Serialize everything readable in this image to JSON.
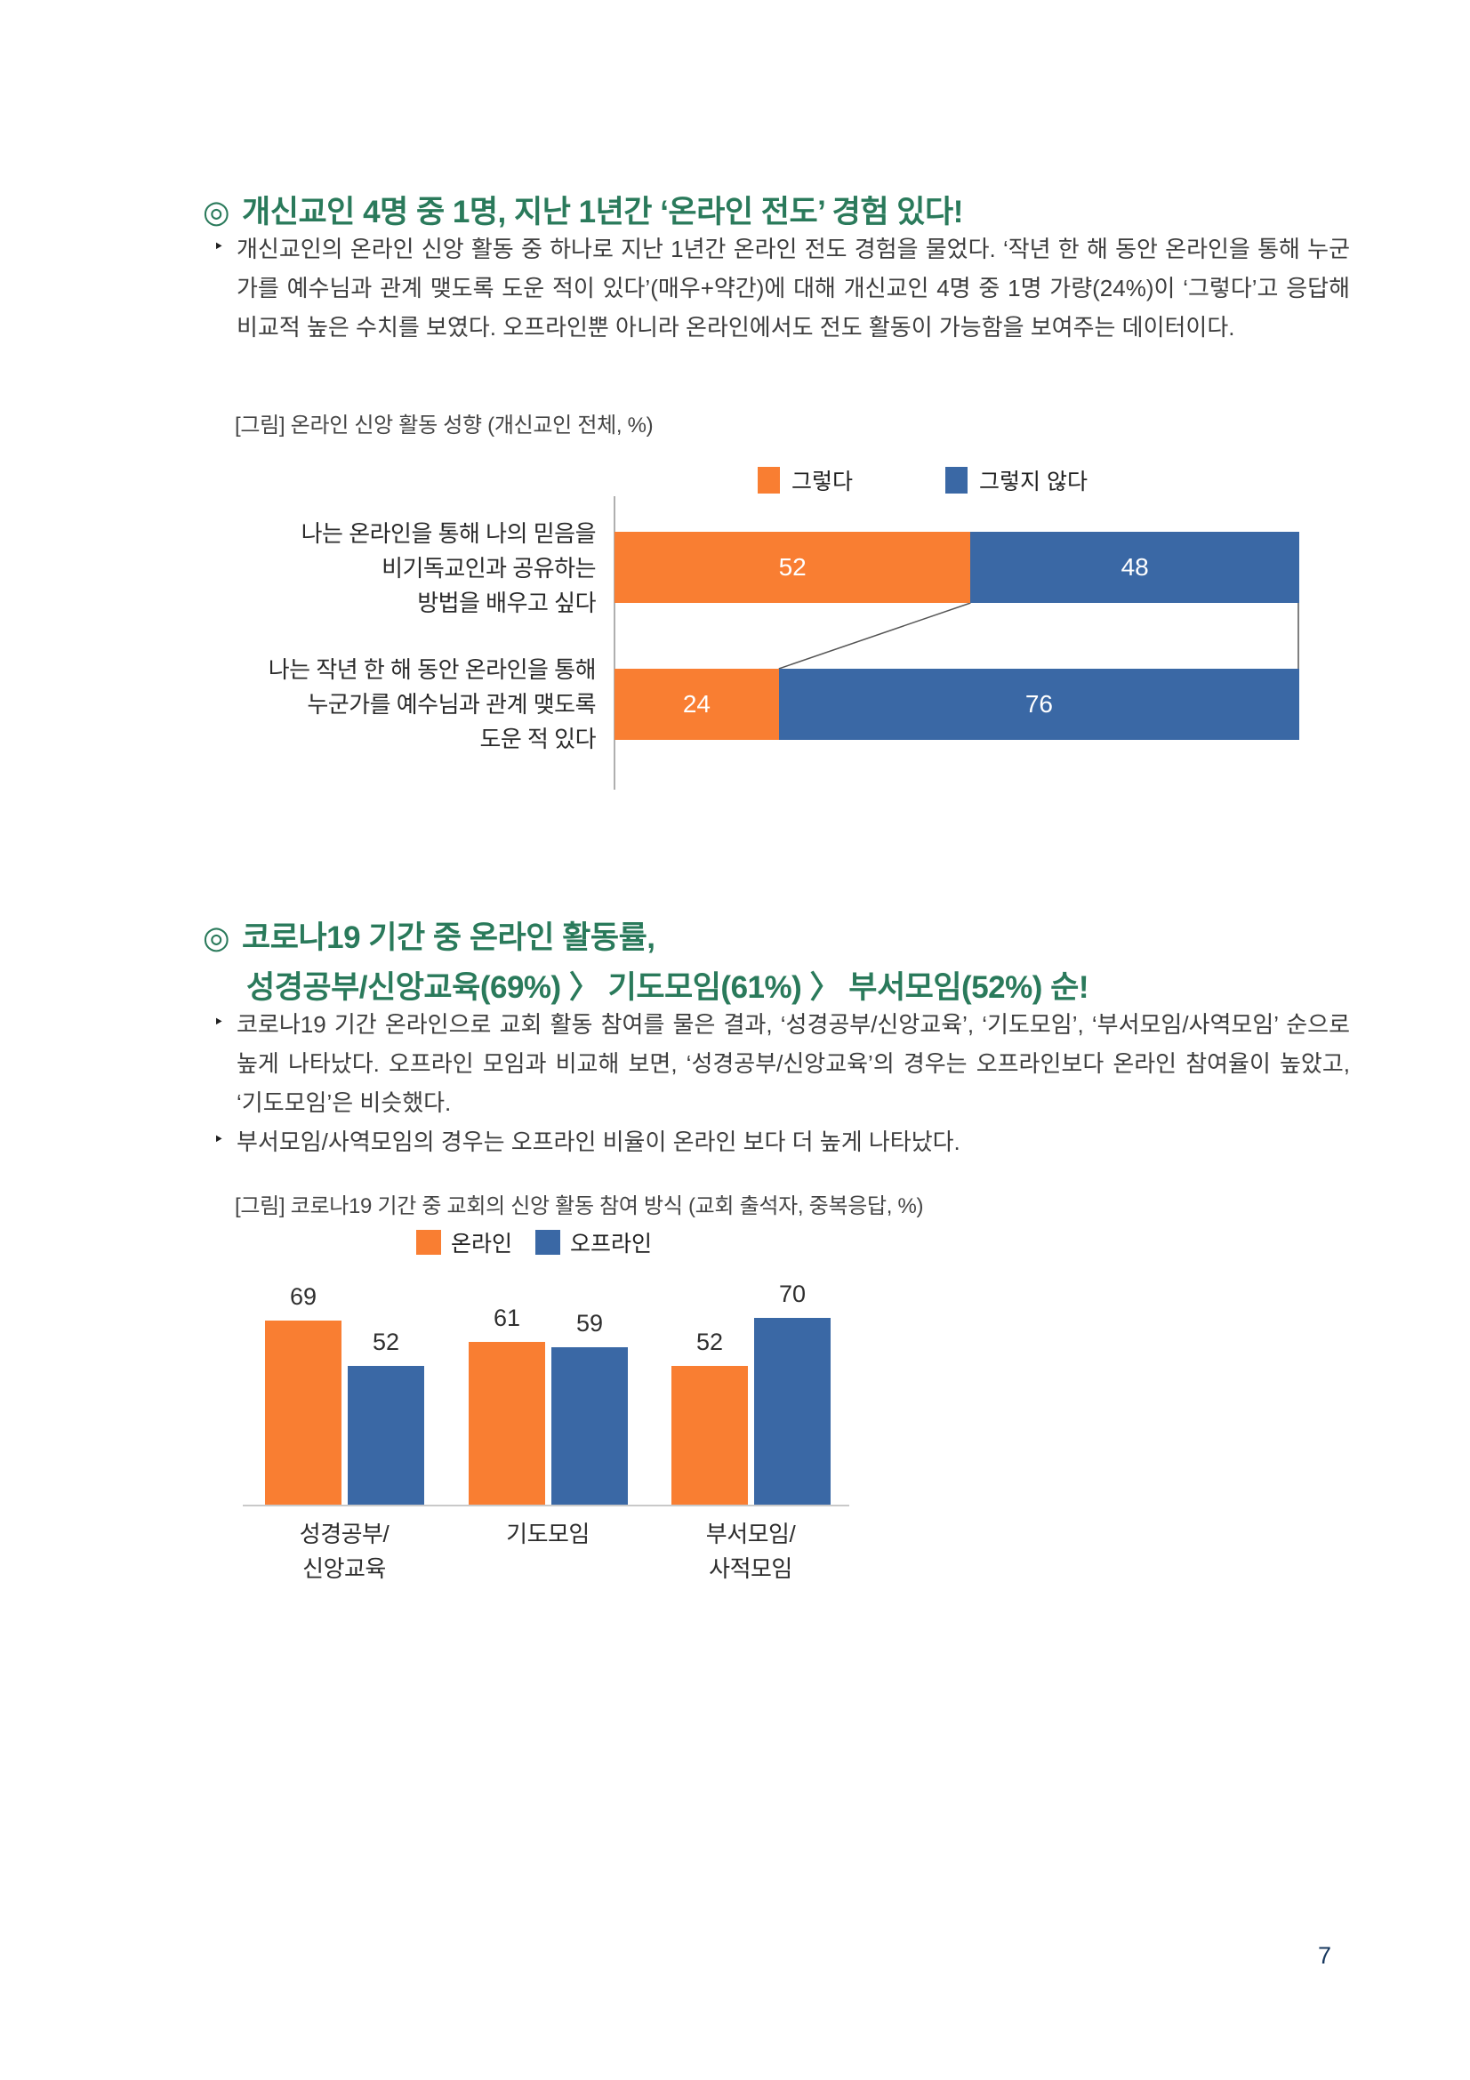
{
  "page": {
    "number": "7",
    "background": "#ffffff"
  },
  "ui": {
    "bullet_glyph": "‣",
    "section_marker": "◎"
  },
  "colors": {
    "heading_green": "#2A7A5B",
    "series_orange": "#F97E32",
    "series_blue": "#3A68A5",
    "body_text": "#3d3d3d",
    "page_number_navy": "#17375E"
  },
  "section1": {
    "marker": "◎",
    "heading": "개신교인 4명 중 1명, 지난 1년간 ‘온라인 전도’ 경험 있다!",
    "bullet": "개신교인의 온라인 신앙 활동 중 하나로 지난 1년간 온라인 전도 경험을 물었다. ‘작년 한 해 동안 온라인을 통해 누군가를 예수님과 관계 맺도록 도운 적이 있다’(매우+약간)에 대해 개신교인 4명 중 1명 가량(24%)이 ‘그렇다’고 응답해 비교적 높은 수치를 보였다. 오프라인뿐 아니라 온라인에서도 전도 활동이 가능함을 보여주는 데이터이다.",
    "figure_caption": "[그림] 온라인 신앙 활동 성향 (개신교인 전체, %)"
  },
  "section2": {
    "marker": "◎",
    "heading_lines": [
      "코로나19 기간 중 온라인 활동률,",
      "성경공부/신앙교육(69%) 〉 기도모임(61%) 〉 부서모임(52%) 순!"
    ],
    "bullet1": "코로나19 기간 온라인으로 교회 활동 참여를 물은 결과, ‘성경공부/신앙교육’, ‘기도모임’, ‘부서모임/사역모임’ 순으로 높게 나타났다. 오프라인 모임과 비교해 보면, ‘성경공부/신앙교육’의 경우는 오프라인보다 온라인 참여율이 높았고, ‘기도모임’은 비슷했다.",
    "bullet2": "부서모임/사역모임의 경우는 오프라인 비율이 온라인 보다 더 높게 나타났다.",
    "figure_caption": "[그림] 코로나19 기간 중 교회의 신앙 활동 참여 방식 (교회 출석자, 중복응답, %)"
  },
  "chart_data": [
    {
      "type": "bar",
      "orientation": "horizontal",
      "stacked": true,
      "title": "온라인 신앙 활동 성향 (개신교인 전체, %)",
      "categories": [
        "나는 온라인을 통해 나의 믿음을 비기독교인과 공유하는 방법을 배우고 싶다",
        "나는 작년 한 해 동안 온라인을 통해 누군가를 예수님과 관계 맺도록 도운 적 있다"
      ],
      "categories_lines": [
        [
          "나는 온라인을 통해 나의 믿음을",
          "비기독교인과 공유하는",
          "방법을 배우고 싶다"
        ],
        [
          "나는 작년 한 해 동안 온라인을 통해",
          "누군가를 예수님과 관계 맺도록",
          "도운 적 있다"
        ]
      ],
      "series": [
        {
          "name": "그렇다",
          "color": "#F97E32",
          "values": [
            52,
            24
          ]
        },
        {
          "name": "그렇지 않다",
          "color": "#3A68A5",
          "values": [
            48,
            76
          ]
        }
      ],
      "xlim": [
        0,
        100
      ],
      "legend_position": "top",
      "value_labels": "inside",
      "grid": false
    },
    {
      "type": "bar",
      "orientation": "vertical",
      "grouped": true,
      "title": "코로나19 기간 중 교회의 신앙 활동 참여 방식 (교회 출석자, 중복응답, %)",
      "categories": [
        "성경공부/신앙교육",
        "기도모임",
        "부서모임/사적모임"
      ],
      "categories_lines": [
        [
          "성경공부/",
          "신앙교육"
        ],
        [
          "기도모임"
        ],
        [
          "부서모임/",
          "사적모임"
        ]
      ],
      "series": [
        {
          "name": "온라인",
          "color": "#F97E32",
          "values": [
            69,
            61,
            52
          ]
        },
        {
          "name": "오프라인",
          "color": "#3A68A5",
          "values": [
            52,
            59,
            70
          ]
        }
      ],
      "ylim": [
        0,
        100
      ],
      "legend_position": "top",
      "value_labels": "above",
      "grid": false
    }
  ]
}
